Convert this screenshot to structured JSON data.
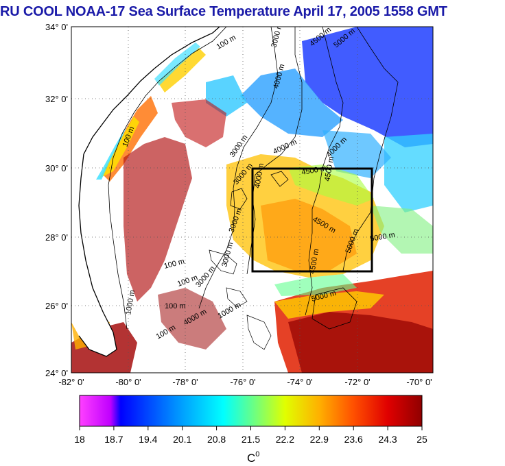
{
  "title": "RU COOL  NOAA-17 Sea Surface Temperature April 17, 2005 1558 GMT",
  "lat_labels": [
    "34° 0'",
    "32° 0'",
    "30° 0'",
    "28° 0'",
    "26° 0'",
    "24° 0'"
  ],
  "lon_labels": [
    "-82° 0'",
    "-80° 0'",
    "-78° 0'",
    "-76° 0'",
    "-74° 0'",
    "-72° 0'",
    "-70° 0'"
  ],
  "contour_labels": [
    "100 m",
    "3000 m",
    "4000 m",
    "4500 m",
    "5000 m",
    "100 m",
    "3000 m",
    "4000 m",
    "4500 m",
    "4000 m",
    "4500 m",
    "3000 m",
    "4000 m",
    "4500 m",
    "3000 m",
    "5000 m",
    "5000 m",
    "4500 m",
    "5000 m",
    "100 m",
    "1000 m",
    "100 m",
    "3000 m",
    "3000 m",
    "1000 m",
    "100 m",
    "100 m",
    "4000 m"
  ],
  "colorbar": {
    "tick_labels": [
      "18",
      "18.7",
      "19.4",
      "20.1",
      "20.8",
      "21.5",
      "22.2",
      "22.9",
      "23.6",
      "24.3",
      "25"
    ],
    "unit_label": "C",
    "unit_superscript": "0",
    "min": 18,
    "max": 25
  },
  "colors": {
    "title": "#1a1aa8",
    "study_box": "#000000"
  }
}
